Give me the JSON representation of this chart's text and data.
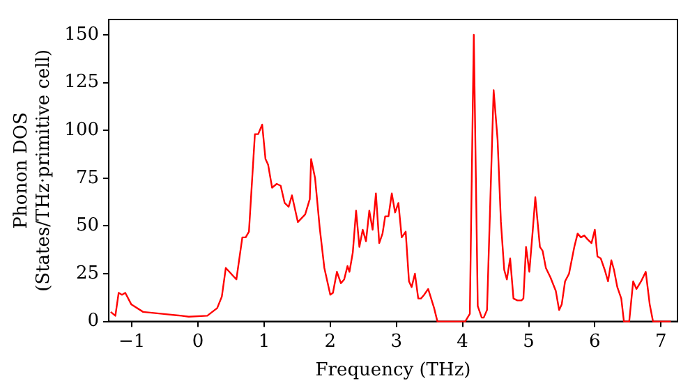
{
  "chart_data": {
    "type": "line",
    "xlabel": "Frequency (THz)",
    "ylabel": "Phonon DOS\n(States/THz·primitive cell)",
    "xlim": [
      -1.35,
      7.25
    ],
    "xticks": [
      -1,
      0,
      1,
      2,
      3,
      4,
      5,
      6,
      7
    ],
    "ylim": [
      0,
      158
    ],
    "yticks": [
      0,
      25,
      50,
      75,
      100,
      125,
      150
    ],
    "grid": false,
    "legend": false,
    "marker": "none",
    "line_style": "solid",
    "series": [
      {
        "color": "#ff0000",
        "x": [
          -1.32,
          -1.25,
          -1.2,
          -1.15,
          -1.1,
          -1.01,
          -0.83,
          -0.54,
          -0.25,
          -0.14,
          0.14,
          0.29,
          0.36,
          0.42,
          0.58,
          0.67,
          0.72,
          0.77,
          0.86,
          0.91,
          0.97,
          1.02,
          1.06,
          1.12,
          1.19,
          1.25,
          1.31,
          1.37,
          1.42,
          1.51,
          1.62,
          1.69,
          1.71,
          1.77,
          1.84,
          1.91,
          2.0,
          2.04,
          2.1,
          2.16,
          2.21,
          2.26,
          2.29,
          2.34,
          2.39,
          2.44,
          2.49,
          2.54,
          2.59,
          2.64,
          2.69,
          2.74,
          2.79,
          2.83,
          2.88,
          2.93,
          2.98,
          3.03,
          3.08,
          3.14,
          3.19,
          3.23,
          3.28,
          3.33,
          3.37,
          3.42,
          3.48,
          3.57,
          3.62,
          4.04,
          4.11,
          4.17,
          4.23,
          4.29,
          4.32,
          4.37,
          4.47,
          4.53,
          4.58,
          4.63,
          4.67,
          4.72,
          4.77,
          4.83,
          4.89,
          4.92,
          4.96,
          5.01,
          5.06,
          5.1,
          5.17,
          5.21,
          5.26,
          5.33,
          5.41,
          5.46,
          5.5,
          5.55,
          5.61,
          5.69,
          5.74,
          5.79,
          5.84,
          5.89,
          5.95,
          6.0,
          6.04,
          6.09,
          6.15,
          6.2,
          6.25,
          6.29,
          6.34,
          6.4,
          6.44,
          6.52,
          6.58,
          6.63,
          6.7,
          6.77,
          6.83,
          6.88,
          7.15
        ],
        "values": [
          5,
          3,
          15,
          14,
          15,
          9,
          5,
          4,
          3,
          2.5,
          3,
          7,
          13,
          28,
          22,
          44,
          44,
          47,
          98,
          98,
          103,
          85,
          82,
          70,
          72,
          71,
          62,
          60,
          66,
          52,
          56,
          64,
          85,
          75,
          49,
          28,
          14,
          15,
          26,
          20,
          22,
          29,
          26,
          36,
          58,
          39,
          48,
          42,
          58,
          48,
          67,
          41,
          46,
          55,
          55,
          67,
          57,
          62,
          44,
          47,
          21,
          18,
          25,
          12,
          12,
          14,
          17,
          7,
          0,
          0,
          4,
          150,
          8,
          2,
          2,
          6,
          121,
          95,
          52,
          27,
          22,
          33,
          12,
          11,
          11,
          12,
          39,
          26,
          47,
          65,
          39,
          37,
          28,
          23,
          16,
          6,
          9,
          21,
          25,
          39,
          46,
          44,
          45,
          43,
          41,
          48,
          34,
          33,
          27,
          21,
          32,
          27,
          18,
          12,
          0,
          0,
          21,
          17,
          21,
          26,
          9,
          0,
          0
        ]
      }
    ]
  }
}
